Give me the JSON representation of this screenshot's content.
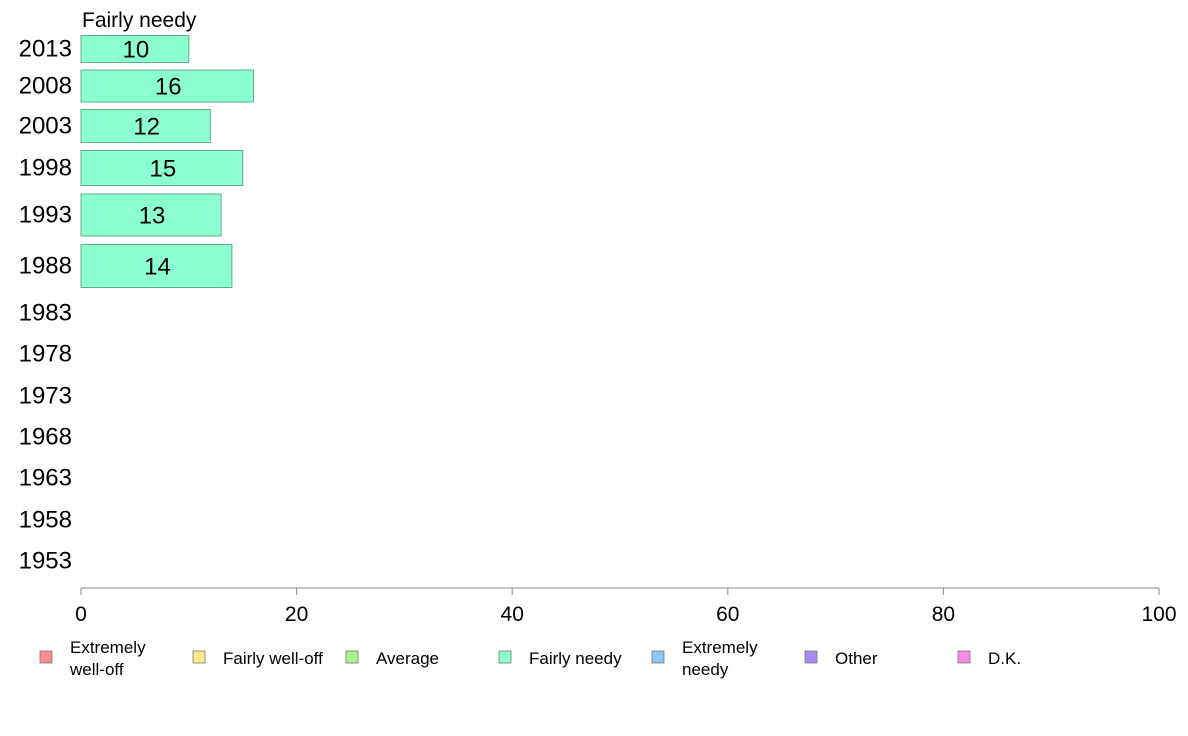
{
  "chart_data": {
    "type": "bar",
    "orientation": "horizontal",
    "title": "Fairly needy",
    "categories": [
      "2013",
      "2008",
      "2003",
      "1998",
      "1993",
      "1988",
      "1983",
      "1978",
      "1973",
      "1968",
      "1963",
      "1958",
      "1953"
    ],
    "series": [
      {
        "name": "Fairly needy",
        "color": "#8cffd1",
        "values": [
          10,
          16,
          12,
          15,
          13,
          14,
          null,
          null,
          null,
          null,
          null,
          null,
          null
        ]
      }
    ],
    "xlim": [
      0,
      100
    ],
    "xticks": [
      0,
      20,
      40,
      60,
      80,
      100
    ],
    "grid": false,
    "legend": {
      "placement": "bottom",
      "items": [
        {
          "lines": [
            "Extremely",
            "well-off"
          ],
          "color": "#ff8c8c"
        },
        {
          "lines": [
            "Fairly well-off"
          ],
          "color": "#ffe88c"
        },
        {
          "lines": [
            "Average"
          ],
          "color": "#a8f58c"
        },
        {
          "lines": [
            "Fairly needy"
          ],
          "color": "#8cffd1"
        },
        {
          "lines": [
            "Extremely",
            "needy"
          ],
          "color": "#8cc8f5"
        },
        {
          "lines": [
            "Other"
          ],
          "color": "#a88cf5"
        },
        {
          "lines": [
            "D.K."
          ],
          "color": "#f58ce8"
        }
      ]
    }
  }
}
